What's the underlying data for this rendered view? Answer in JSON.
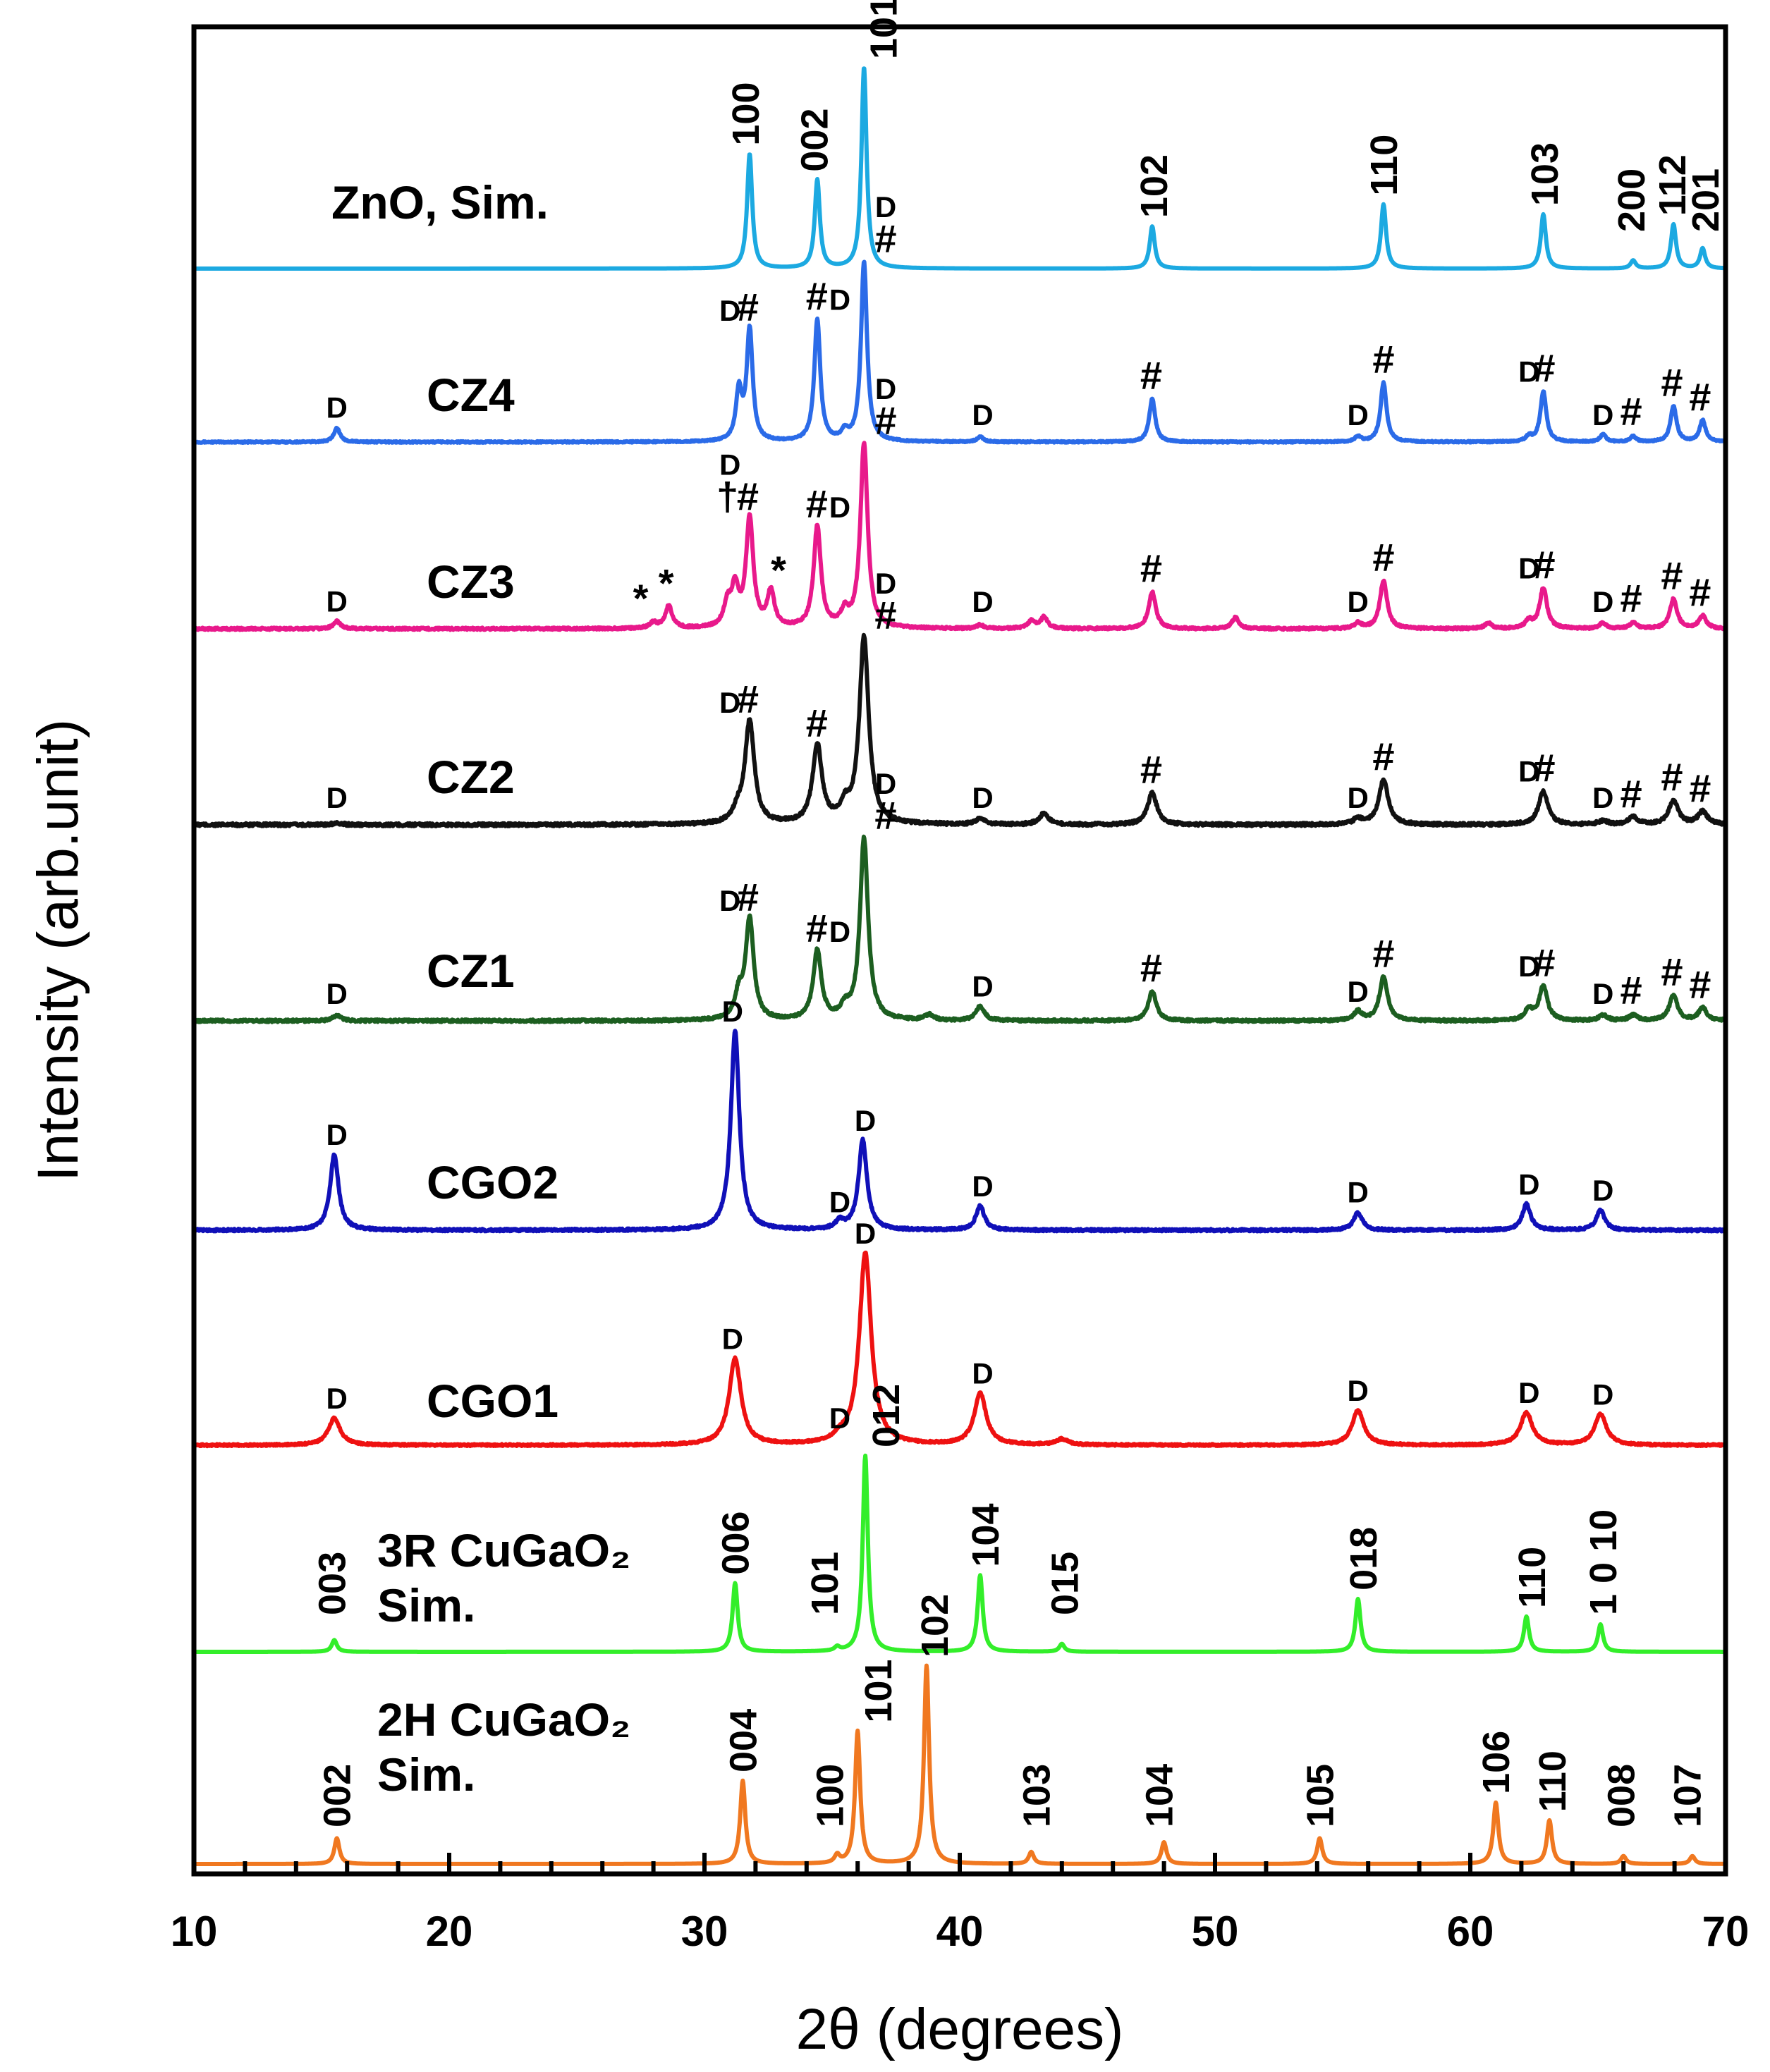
{
  "chart_data": {
    "type": "line",
    "title": "",
    "xlabel": "2θ (degrees)",
    "ylabel": "Intensity (arb.unit)",
    "xlim": [
      10,
      70
    ],
    "x_ticks": [
      10,
      20,
      30,
      40,
      50,
      60,
      70
    ],
    "x_tick_labels": [
      "10",
      "20",
      "30",
      "40",
      "50",
      "60",
      "70"
    ],
    "grid": false,
    "series": [
      {
        "name": "ZnO, Sim.",
        "name_lines": [
          "ZnO, Sim."
        ],
        "color": "#1ca9e1",
        "peaks": [
          [
            31.77,
            0.57
          ],
          [
            34.42,
            0.44
          ],
          [
            36.25,
            1.0
          ],
          [
            47.54,
            0.21
          ],
          [
            56.6,
            0.32
          ],
          [
            62.86,
            0.27
          ],
          [
            66.38,
            0.04
          ],
          [
            67.96,
            0.22
          ],
          [
            69.1,
            0.1
          ]
        ],
        "width": 0.12,
        "noise": 0.0,
        "labels": [
          {
            "x": 31.6,
            "text": "100",
            "rot": true
          },
          {
            "x": 34.3,
            "text": "002",
            "rot": true
          },
          {
            "x": 37.0,
            "text": "101",
            "rot": true
          },
          {
            "x": 47.6,
            "text": "102",
            "rot": true
          },
          {
            "x": 56.6,
            "text": "110",
            "rot": true
          },
          {
            "x": 62.9,
            "text": "103",
            "rot": true
          },
          {
            "x": 66.3,
            "text": "200",
            "rot": true
          },
          {
            "x": 67.9,
            "text": "112",
            "rot": true
          },
          {
            "x": 69.2,
            "text": "201",
            "rot": true
          }
        ]
      },
      {
        "name": "CZ4",
        "name_lines": [
          "CZ4"
        ],
        "color": "#2b6be8",
        "peaks": [
          [
            15.6,
            0.08
          ],
          [
            31.35,
            0.27
          ],
          [
            31.77,
            0.62
          ],
          [
            34.42,
            0.68
          ],
          [
            35.5,
            0.05
          ],
          [
            36.25,
            1.0
          ],
          [
            40.8,
            0.03
          ],
          [
            47.54,
            0.24
          ],
          [
            55.6,
            0.03
          ],
          [
            56.6,
            0.33
          ],
          [
            62.3,
            0.03
          ],
          [
            62.86,
            0.28
          ],
          [
            65.2,
            0.04
          ],
          [
            66.38,
            0.03
          ],
          [
            67.96,
            0.2
          ],
          [
            69.1,
            0.12
          ]
        ],
        "width": 0.14,
        "noise": 0.004,
        "labels": [
          {
            "x": 15.6,
            "text": "D"
          },
          {
            "x": 31.0,
            "text": "D"
          },
          {
            "x": 31.7,
            "text": "#"
          },
          {
            "x": 34.4,
            "text": "#"
          },
          {
            "x": 35.3,
            "text": "D"
          },
          {
            "x": 37.1,
            "text": "#"
          },
          {
            "x": 37.1,
            "text": "D"
          },
          {
            "x": 40.9,
            "text": "D"
          },
          {
            "x": 47.5,
            "text": "#"
          },
          {
            "x": 55.6,
            "text": "D"
          },
          {
            "x": 56.6,
            "text": "#"
          },
          {
            "x": 62.3,
            "text": "D"
          },
          {
            "x": 62.9,
            "text": "#"
          },
          {
            "x": 65.2,
            "text": "D"
          },
          {
            "x": 66.3,
            "text": "#"
          },
          {
            "x": 67.9,
            "text": "#"
          },
          {
            "x": 69.0,
            "text": "#"
          }
        ]
      },
      {
        "name": "CZ3",
        "name_lines": [
          "CZ3"
        ],
        "color": "#e8198b",
        "peaks": [
          [
            15.6,
            0.04
          ],
          [
            28.0,
            0.03
          ],
          [
            28.6,
            0.12
          ],
          [
            30.9,
            0.12
          ],
          [
            31.2,
            0.2
          ],
          [
            31.77,
            0.59
          ],
          [
            32.6,
            0.19
          ],
          [
            34.42,
            0.55
          ],
          [
            35.5,
            0.08
          ],
          [
            36.25,
            1.0
          ],
          [
            40.8,
            0.02
          ],
          [
            42.8,
            0.04
          ],
          [
            43.3,
            0.06
          ],
          [
            47.54,
            0.2
          ],
          [
            50.8,
            0.06
          ],
          [
            55.6,
            0.03
          ],
          [
            56.6,
            0.26
          ],
          [
            60.7,
            0.03
          ],
          [
            62.3,
            0.04
          ],
          [
            62.86,
            0.22
          ],
          [
            65.2,
            0.03
          ],
          [
            66.38,
            0.03
          ],
          [
            67.96,
            0.16
          ],
          [
            69.1,
            0.07
          ]
        ],
        "width": 0.17,
        "noise": 0.006,
        "labels": [
          {
            "x": 15.6,
            "text": "D"
          },
          {
            "x": 27.5,
            "text": "*"
          },
          {
            "x": 28.5,
            "text": "*"
          },
          {
            "x": 30.9,
            "text": "†"
          },
          {
            "x": 31.0,
            "text": "D"
          },
          {
            "x": 31.7,
            "text": "#"
          },
          {
            "x": 32.9,
            "text": "*"
          },
          {
            "x": 34.4,
            "text": "#"
          },
          {
            "x": 35.3,
            "text": "D"
          },
          {
            "x": 37.1,
            "text": "#"
          },
          {
            "x": 37.1,
            "text": "D"
          },
          {
            "x": 40.9,
            "text": "D"
          },
          {
            "x": 47.5,
            "text": "#"
          },
          {
            "x": 55.6,
            "text": "D"
          },
          {
            "x": 56.6,
            "text": "#"
          },
          {
            "x": 62.3,
            "text": "D"
          },
          {
            "x": 62.9,
            "text": "#"
          },
          {
            "x": 65.2,
            "text": "D"
          },
          {
            "x": 66.3,
            "text": "#"
          },
          {
            "x": 67.9,
            "text": "#"
          },
          {
            "x": 69.0,
            "text": "#"
          }
        ]
      },
      {
        "name": "CZ2",
        "name_lines": [
          "CZ2"
        ],
        "color": "#111111",
        "peaks": [
          [
            15.6,
            0.01
          ],
          [
            31.3,
            0.06
          ],
          [
            31.77,
            0.55
          ],
          [
            34.42,
            0.42
          ],
          [
            35.5,
            0.08
          ],
          [
            36.25,
            1.0
          ],
          [
            40.8,
            0.03
          ],
          [
            43.3,
            0.06
          ],
          [
            47.54,
            0.17
          ],
          [
            55.6,
            0.03
          ],
          [
            56.6,
            0.24
          ],
          [
            62.86,
            0.18
          ],
          [
            65.2,
            0.02
          ],
          [
            66.38,
            0.04
          ],
          [
            67.96,
            0.13
          ],
          [
            69.1,
            0.07
          ]
        ],
        "width": 0.22,
        "noise": 0.008,
        "labels": [
          {
            "x": 15.6,
            "text": "D"
          },
          {
            "x": 31.0,
            "text": "D"
          },
          {
            "x": 31.7,
            "text": "#"
          },
          {
            "x": 34.4,
            "text": "#"
          },
          {
            "x": 37.1,
            "text": "#"
          },
          {
            "x": 37.1,
            "text": "D"
          },
          {
            "x": 40.9,
            "text": "D"
          },
          {
            "x": 47.5,
            "text": "#"
          },
          {
            "x": 55.6,
            "text": "D"
          },
          {
            "x": 56.6,
            "text": "#"
          },
          {
            "x": 62.3,
            "text": "D"
          },
          {
            "x": 62.9,
            "text": "#"
          },
          {
            "x": 65.2,
            "text": "D"
          },
          {
            "x": 66.3,
            "text": "#"
          },
          {
            "x": 67.9,
            "text": "#"
          },
          {
            "x": 69.0,
            "text": "#"
          }
        ]
      },
      {
        "name": "CZ1",
        "name_lines": [
          "CZ1"
        ],
        "color": "#1c5e20",
        "peaks": [
          [
            15.6,
            0.03
          ],
          [
            31.35,
            0.13
          ],
          [
            31.77,
            0.55
          ],
          [
            34.42,
            0.38
          ],
          [
            35.5,
            0.06
          ],
          [
            36.25,
            1.0
          ],
          [
            38.8,
            0.03
          ],
          [
            40.8,
            0.08
          ],
          [
            47.54,
            0.16
          ],
          [
            55.6,
            0.05
          ],
          [
            56.6,
            0.24
          ],
          [
            62.3,
            0.06
          ],
          [
            62.86,
            0.19
          ],
          [
            65.2,
            0.03
          ],
          [
            66.38,
            0.03
          ],
          [
            67.96,
            0.14
          ],
          [
            69.1,
            0.07
          ]
        ],
        "width": 0.19,
        "noise": 0.007,
        "labels": [
          {
            "x": 15.6,
            "text": "D"
          },
          {
            "x": 31.0,
            "text": "D"
          },
          {
            "x": 31.7,
            "text": "#"
          },
          {
            "x": 34.4,
            "text": "#"
          },
          {
            "x": 35.3,
            "text": "D"
          },
          {
            "x": 37.1,
            "text": "#"
          },
          {
            "x": 37.1,
            "text": "D"
          },
          {
            "x": 40.9,
            "text": "D"
          },
          {
            "x": 47.5,
            "text": "#"
          },
          {
            "x": 55.6,
            "text": "D"
          },
          {
            "x": 56.6,
            "text": "#"
          },
          {
            "x": 62.3,
            "text": "D"
          },
          {
            "x": 62.9,
            "text": "#"
          },
          {
            "x": 65.2,
            "text": "D"
          },
          {
            "x": 66.3,
            "text": "#"
          },
          {
            "x": 67.9,
            "text": "#"
          },
          {
            "x": 69.0,
            "text": "#"
          }
        ]
      },
      {
        "name": "CGO2",
        "name_lines": [
          "CGO2"
        ],
        "color": "#1010b8",
        "peaks": [
          [
            15.5,
            0.38
          ],
          [
            31.2,
            1.0
          ],
          [
            35.3,
            0.04
          ],
          [
            36.2,
            0.45
          ],
          [
            40.8,
            0.12
          ],
          [
            55.6,
            0.09
          ],
          [
            62.2,
            0.13
          ],
          [
            65.1,
            0.1
          ]
        ],
        "width": 0.2,
        "noise": 0.006,
        "labels": [
          {
            "x": 15.6,
            "text": "D"
          },
          {
            "x": 31.1,
            "text": "D"
          },
          {
            "x": 35.3,
            "text": "D"
          },
          {
            "x": 36.3,
            "text": "D"
          },
          {
            "x": 40.9,
            "text": "D"
          },
          {
            "x": 55.6,
            "text": "D"
          },
          {
            "x": 62.3,
            "text": "D"
          },
          {
            "x": 65.2,
            "text": "D"
          }
        ]
      },
      {
        "name": "CGO1",
        "name_lines": [
          "CGO1"
        ],
        "color": "#ee1111",
        "peaks": [
          [
            15.5,
            0.14
          ],
          [
            31.2,
            0.45
          ],
          [
            35.3,
            0.03
          ],
          [
            36.3,
            1.0
          ],
          [
            40.8,
            0.27
          ],
          [
            44.0,
            0.03
          ],
          [
            55.6,
            0.18
          ],
          [
            62.2,
            0.17
          ],
          [
            65.1,
            0.16
          ]
        ],
        "width": 0.28,
        "noise": 0.005,
        "labels": [
          {
            "x": 15.6,
            "text": "D"
          },
          {
            "x": 31.1,
            "text": "D"
          },
          {
            "x": 35.3,
            "text": "D"
          },
          {
            "x": 36.3,
            "text": "D"
          },
          {
            "x": 40.9,
            "text": "D"
          },
          {
            "x": 55.6,
            "text": "D"
          },
          {
            "x": 62.3,
            "text": "D"
          },
          {
            "x": 65.2,
            "text": "D"
          }
        ]
      },
      {
        "name": "3R CuGaO₂ Sim.",
        "name_lines": [
          "3R CuGaO₂",
          "Sim."
        ],
        "color": "#33ee2a",
        "peaks": [
          [
            15.5,
            0.06
          ],
          [
            31.2,
            0.35
          ],
          [
            35.2,
            0.02
          ],
          [
            36.3,
            1.0
          ],
          [
            40.8,
            0.39
          ],
          [
            44.0,
            0.04
          ],
          [
            55.6,
            0.27
          ],
          [
            62.2,
            0.18
          ],
          [
            65.1,
            0.14
          ]
        ],
        "width": 0.12,
        "noise": 0.0,
        "labels": [
          {
            "x": 15.4,
            "text": "003",
            "rot": true
          },
          {
            "x": 31.2,
            "text": "006",
            "rot": true
          },
          {
            "x": 34.7,
            "text": "101",
            "rot": true
          },
          {
            "x": 37.1,
            "text": "012",
            "rot": true
          },
          {
            "x": 41.0,
            "text": "104",
            "rot": true
          },
          {
            "x": 44.1,
            "text": "015",
            "rot": true
          },
          {
            "x": 55.8,
            "text": "018",
            "rot": true
          },
          {
            "x": 62.4,
            "text": "110",
            "rot": true
          },
          {
            "x": 65.2,
            "text": "1 0 10",
            "rot": true
          }
        ]
      },
      {
        "name": "2H CuGaO₂ Sim.",
        "name_lines": [
          "2H CuGaO₂",
          "Sim."
        ],
        "color": "#f07820",
        "peaks": [
          [
            15.6,
            0.13
          ],
          [
            31.5,
            0.42
          ],
          [
            35.2,
            0.04
          ],
          [
            36.0,
            0.67
          ],
          [
            38.7,
            1.0
          ],
          [
            42.8,
            0.06
          ],
          [
            48.0,
            0.11
          ],
          [
            54.1,
            0.13
          ],
          [
            61.0,
            0.31
          ],
          [
            63.1,
            0.22
          ],
          [
            66.0,
            0.04
          ],
          [
            68.7,
            0.04
          ]
        ],
        "width": 0.12,
        "noise": 0.0,
        "labels": [
          {
            "x": 15.6,
            "text": "002",
            "rot": true
          },
          {
            "x": 31.5,
            "text": "004",
            "rot": true
          },
          {
            "x": 34.9,
            "text": "100",
            "rot": true
          },
          {
            "x": 36.8,
            "text": "101",
            "rot": true
          },
          {
            "x": 39.0,
            "text": "102",
            "rot": true
          },
          {
            "x": 43.0,
            "text": "103",
            "rot": true
          },
          {
            "x": 47.8,
            "text": "104",
            "rot": true
          },
          {
            "x": 54.1,
            "text": "105",
            "rot": true
          },
          {
            "x": 61.0,
            "text": "106",
            "rot": true
          },
          {
            "x": 63.2,
            "text": "110",
            "rot": true
          },
          {
            "x": 65.9,
            "text": "008",
            "rot": true
          },
          {
            "x": 68.5,
            "text": "107",
            "rot": true
          }
        ]
      }
    ]
  }
}
